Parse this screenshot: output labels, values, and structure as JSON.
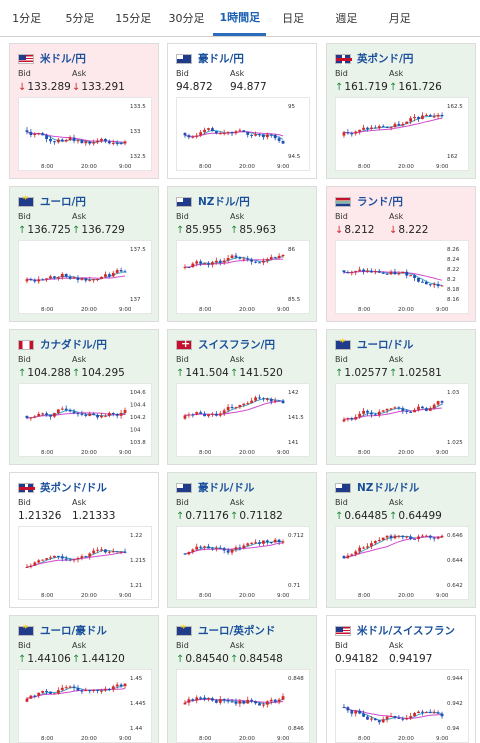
{
  "tabs": [
    "1分足",
    "5分足",
    "15分足",
    "30分足",
    "1時間足",
    "日足",
    "週足",
    "月足"
  ],
  "active_tab": 4,
  "labels": {
    "bid": "Bid",
    "ask": "Ask"
  },
  "colors": {
    "up_arrow": "#1f8a3a",
    "down_arrow": "#d12a2a",
    "candle_up": "#d12a2a",
    "candle_down": "#1f4fb4",
    "ma_short": "#3aa8c9",
    "ma_long": "#d04ad0",
    "down_card_bg": "#fde9ec",
    "up_card_bg": "#e9f3ea"
  },
  "cards": [
    {
      "pair": "米ドル/円",
      "flag": "us",
      "trend": "down",
      "bid": "133.289",
      "ask": "133.291",
      "chart": {
        "ticks_y": [
          "133.5",
          "133",
          "132.5"
        ],
        "ticks_x": [
          "8:00",
          "20:00",
          "9:00"
        ]
      }
    },
    {
      "pair": "豪ドル/円",
      "flag": "au",
      "trend": "neutral",
      "bid": "94.872",
      "ask": "94.877",
      "chart": {
        "ticks_y": [
          "95",
          "94.5"
        ],
        "ticks_x": [
          "8:00",
          "20:00",
          "9:00"
        ]
      }
    },
    {
      "pair": "英ポンド/円",
      "flag": "gb",
      "trend": "up",
      "bid": "161.719",
      "ask": "161.726",
      "chart": {
        "ticks_y": [
          "162.5",
          "162"
        ],
        "ticks_x": [
          "8:00",
          "20:00",
          "9:00"
        ]
      }
    },
    {
      "pair": "ユーロ/円",
      "flag": "eu",
      "trend": "up",
      "bid": "136.725",
      "ask": "136.729",
      "chart": {
        "ticks_y": [
          "137.5",
          "137"
        ],
        "ticks_x": [
          "8:00",
          "20:00",
          "9:00"
        ]
      }
    },
    {
      "pair": "NZドル/円",
      "flag": "nz",
      "trend": "up",
      "bid": "85.955",
      "ask": "85.963",
      "chart": {
        "ticks_y": [
          "86",
          "85.5"
        ],
        "ticks_x": [
          "8:00",
          "20:00",
          "9:00"
        ]
      }
    },
    {
      "pair": "ランド/円",
      "flag": "za",
      "trend": "down",
      "bid": "8.212",
      "ask": "8.222",
      "chart": {
        "ticks_y": [
          "8.26",
          "8.24",
          "8.22",
          "8.2",
          "8.18",
          "8.16"
        ],
        "ticks_x": [
          "8:00",
          "20:00",
          "9:00"
        ]
      }
    },
    {
      "pair": "カナダドル/円",
      "flag": "ca",
      "trend": "up",
      "bid": "104.288",
      "ask": "104.295",
      "chart": {
        "ticks_y": [
          "104.6",
          "104.4",
          "104.2",
          "104",
          "103.8"
        ],
        "ticks_x": [
          "8:00",
          "20:00",
          "9:00"
        ]
      }
    },
    {
      "pair": "スイスフラン/円",
      "flag": "ch",
      "trend": "up",
      "bid": "141.504",
      "ask": "141.520",
      "chart": {
        "ticks_y": [
          "142",
          "141.5",
          "141"
        ],
        "ticks_x": [
          "8:00",
          "20:00",
          "9:00"
        ]
      }
    },
    {
      "pair": "ユーロ/ドル",
      "flag": "eu",
      "trend": "up",
      "bid": "1.02577",
      "ask": "1.02581",
      "chart": {
        "ticks_y": [
          "1.03",
          "1.025"
        ],
        "ticks_x": [
          "8:00",
          "20:00",
          "9:00"
        ]
      }
    },
    {
      "pair": "英ポンド/ドル",
      "flag": "gb",
      "trend": "neutral",
      "bid": "1.21326",
      "ask": "1.21333",
      "chart": {
        "ticks_y": [
          "1.22",
          "1.215",
          "1.21"
        ],
        "ticks_x": [
          "8:00",
          "20:00",
          "9:00"
        ]
      }
    },
    {
      "pair": "豪ドル/ドル",
      "flag": "au",
      "trend": "up",
      "bid": "0.71176",
      "ask": "0.71182",
      "chart": {
        "ticks_y": [
          "0.712",
          "0.71"
        ],
        "ticks_x": [
          "8:00",
          "20:00",
          "9:00"
        ]
      }
    },
    {
      "pair": "NZドル/ドル",
      "flag": "nz",
      "trend": "up",
      "bid": "0.64485",
      "ask": "0.64499",
      "chart": {
        "ticks_y": [
          "0.646",
          "0.644",
          "0.642"
        ],
        "ticks_x": [
          "8:00",
          "20:00",
          "9:00"
        ]
      }
    },
    {
      "pair": "ユーロ/豪ドル",
      "flag": "eu",
      "trend": "up",
      "bid": "1.44106",
      "ask": "1.44120",
      "chart": {
        "ticks_y": [
          "1.45",
          "1.445",
          "1.44"
        ],
        "ticks_x": [
          "8:00",
          "20:00",
          "9:00"
        ]
      }
    },
    {
      "pair": "ユーロ/英ポンド",
      "flag": "eu",
      "trend": "up",
      "bid": "0.84540",
      "ask": "0.84548",
      "chart": {
        "ticks_y": [
          "0.848",
          "0.846"
        ],
        "ticks_x": [
          "8:00",
          "20:00",
          "9:00"
        ]
      }
    },
    {
      "pair": "米ドル/スイスフラン",
      "flag": "us",
      "trend": "neutral",
      "bid": "0.94182",
      "ask": "0.94197",
      "chart": {
        "ticks_y": [
          "0.944",
          "0.942",
          "0.94"
        ],
        "ticks_x": [
          "8:00",
          "20:00",
          "9:00"
        ]
      }
    }
  ]
}
